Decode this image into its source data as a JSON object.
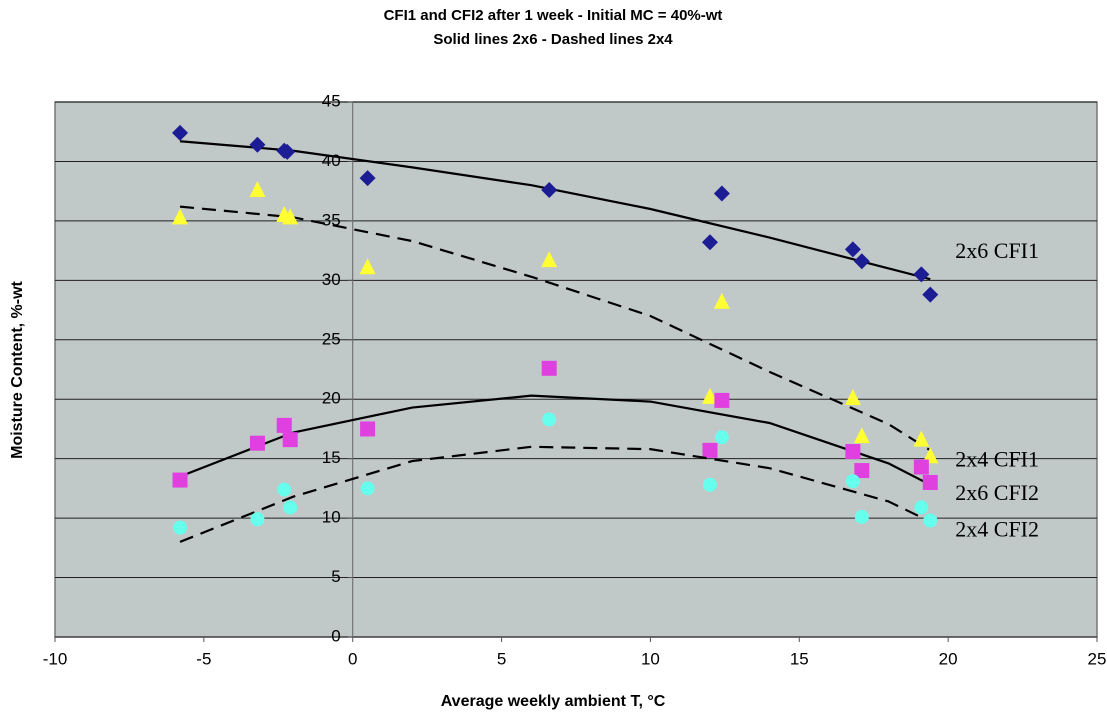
{
  "chart_data": {
    "type": "scatter",
    "title": "CFI1 and CFI2 after 1 week - Initial MC = 40%-wt",
    "subtitle": "Solid lines 2x6 - Dashed lines 2x4",
    "x_label": "Average weekly ambient T, °C",
    "y_label": "Moisture Content, %-wt",
    "xlim": [
      -10,
      25
    ],
    "xticks": [
      -10,
      -5,
      0,
      5,
      10,
      15,
      20,
      25
    ],
    "ylim": [
      0,
      45
    ],
    "yticks": [
      0,
      5,
      10,
      15,
      20,
      25,
      30,
      35,
      40,
      45
    ],
    "grid": true,
    "series": [
      {
        "name": "2x6 CFI1",
        "color": "#1c1c94",
        "marker": "diamond",
        "line": "solid",
        "x": [
          -5.8,
          -3.2,
          -2.3,
          -2.2,
          0.5,
          6.6,
          12,
          12.4,
          16.8,
          17.1,
          19.1,
          19.4
        ],
        "values": [
          42.4,
          41.4,
          40.9,
          40.8,
          38.6,
          37.6,
          33.2,
          37.3,
          32.6,
          31.6,
          30.5,
          28.8
        ],
        "trend_x": [
          -5.8,
          -2,
          2,
          6,
          10,
          14,
          18,
          19.4
        ],
        "trend_values": [
          41.7,
          40.9,
          39.5,
          38.0,
          36.0,
          33.6,
          31.0,
          30.1
        ]
      },
      {
        "name": "2x4 CFI1",
        "color": "#ffff33",
        "marker": "triangle",
        "line": "dashed",
        "x": [
          -5.8,
          -3.2,
          -2.3,
          -2.1,
          0.5,
          6.6,
          12,
          12.4,
          16.8,
          17.1,
          19.1,
          19.4
        ],
        "values": [
          35.3,
          37.6,
          35.5,
          35.3,
          31.1,
          31.7,
          20.2,
          28.2,
          20.1,
          16.9,
          16.6,
          15.2
        ],
        "trend_x": [
          -5.8,
          -2,
          2,
          6,
          10,
          14,
          18,
          19.4
        ],
        "trend_values": [
          36.2,
          35.3,
          33.3,
          30.3,
          27.0,
          22.3,
          17.9,
          15.7
        ]
      },
      {
        "name": "2x6 CFI2",
        "color": "#e040e0",
        "marker": "square",
        "line": "solid",
        "x": [
          -5.8,
          -3.2,
          -2.3,
          -2.1,
          0.5,
          6.6,
          12,
          12.4,
          16.8,
          17.1,
          19.1,
          19.4
        ],
        "values": [
          13.2,
          16.3,
          17.8,
          16.6,
          17.5,
          22.6,
          15.7,
          19.9,
          15.6,
          14.0,
          14.3,
          13.0
        ],
        "trend_x": [
          -5.8,
          -2,
          2,
          6,
          10,
          14,
          18,
          19.4
        ],
        "trend_values": [
          13.5,
          17.2,
          19.3,
          20.3,
          19.8,
          18.0,
          14.6,
          12.8
        ]
      },
      {
        "name": "2x4 CFI2",
        "color": "#66ffee",
        "marker": "circle",
        "line": "dashed",
        "x": [
          -5.8,
          -3.2,
          -2.3,
          -2.1,
          0.5,
          6.6,
          12,
          12.4,
          16.8,
          17.1,
          19.1,
          19.4
        ],
        "values": [
          9.2,
          9.9,
          12.4,
          10.9,
          12.5,
          18.3,
          12.8,
          16.8,
          13.1,
          10.1,
          10.9,
          9.8
        ],
        "trend_x": [
          -5.8,
          -2,
          2,
          6,
          10,
          14,
          18,
          19.4
        ],
        "trend_values": [
          8.0,
          11.8,
          14.8,
          16.0,
          15.8,
          14.2,
          11.4,
          9.7
        ]
      }
    ]
  }
}
